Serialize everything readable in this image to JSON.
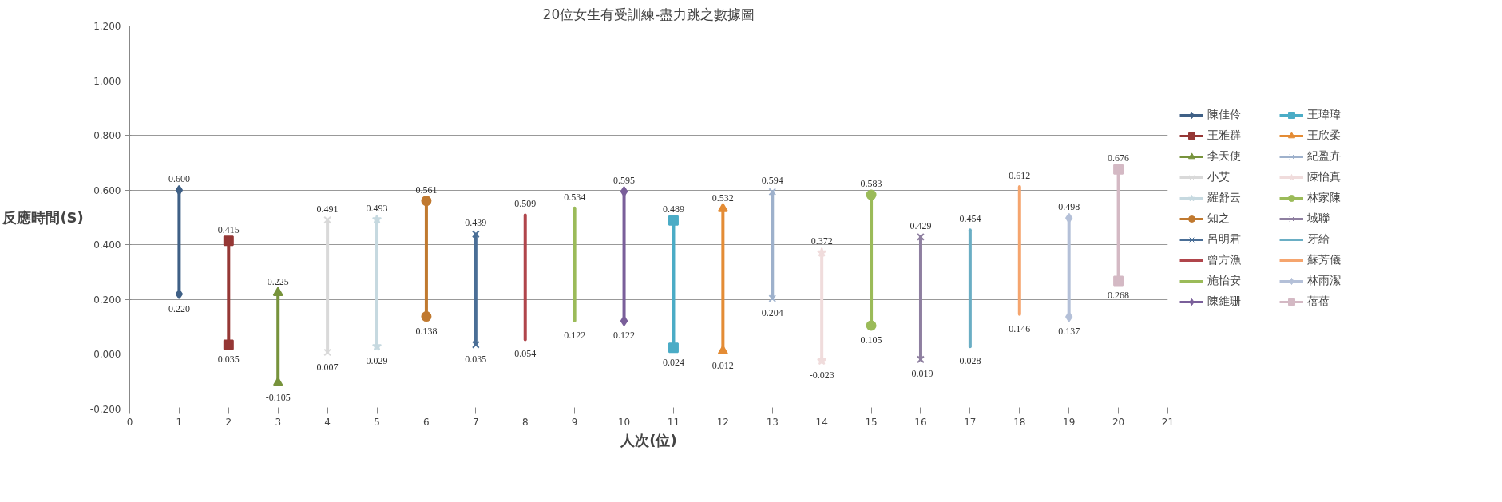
{
  "chart_data": {
    "type": "line",
    "title": "20位女生有受訓練-盡力跳之數據圖",
    "xlabel": "人次(位)",
    "ylabel": "反應時間(S)",
    "xlim": [
      0,
      21
    ],
    "xticks": [
      0,
      1,
      2,
      3,
      4,
      5,
      6,
      7,
      8,
      9,
      10,
      11,
      12,
      13,
      14,
      15,
      16,
      17,
      18,
      19,
      20,
      21
    ],
    "ylim": [
      -0.2,
      1.2
    ],
    "yticks": [
      {
        "value": -0.2,
        "label": "-0.200"
      },
      {
        "value": 0,
        "label": "0.000"
      },
      {
        "value": 0.2,
        "label": "0.200"
      },
      {
        "value": 0.4,
        "label": "0.400"
      },
      {
        "value": 0.6,
        "label": "0.600"
      },
      {
        "value": 0.8,
        "label": "0.800"
      },
      {
        "value": 1.0,
        "label": "1.000"
      },
      {
        "value": 1.2,
        "label": "1.200"
      }
    ],
    "grid": "y",
    "legend": "right",
    "series": [
      {
        "name": "陳佳伶",
        "color": "#3f6086",
        "marker": "diamond",
        "x": [
          1,
          1
        ],
        "values": [
          0.6,
          0.22
        ],
        "value_labels": [
          "0.600",
          "0.220"
        ]
      },
      {
        "name": "王雅群",
        "color": "#953735",
        "marker": "square",
        "x": [
          2,
          2
        ],
        "values": [
          0.415,
          0.035
        ],
        "value_labels": [
          "0.415",
          "0.035"
        ]
      },
      {
        "name": "李天使",
        "color": "#77933c",
        "marker": "triangle",
        "x": [
          3,
          3
        ],
        "values": [
          0.225,
          -0.105
        ],
        "value_labels": [
          "0.225",
          "-0.105"
        ]
      },
      {
        "name": "小艾",
        "color": "#d9d9d9",
        "marker": "cross",
        "x": [
          4,
          4
        ],
        "values": [
          0.491,
          0.007
        ],
        "value_labels": [
          "0.491",
          "0.007"
        ]
      },
      {
        "name": "羅舒云",
        "color": "#c6d9e0",
        "marker": "star",
        "x": [
          5,
          5
        ],
        "values": [
          0.493,
          0.029
        ],
        "value_labels": [
          "0.493",
          "0.029"
        ]
      },
      {
        "name": "知之",
        "color": "#c0792f",
        "marker": "circle",
        "x": [
          6,
          6
        ],
        "values": [
          0.561,
          0.138
        ],
        "value_labels": [
          "0.561",
          "0.138"
        ]
      },
      {
        "name": "呂明君",
        "color": "#4a6e96",
        "marker": "cross",
        "x": [
          7,
          7
        ],
        "values": [
          0.439,
          0.035
        ],
        "value_labels": [
          "0.439",
          "0.035"
        ]
      },
      {
        "name": "曾方漁",
        "color": "#b0454b",
        "marker": "none",
        "x": [
          8,
          8
        ],
        "values": [
          0.509,
          0.054
        ],
        "value_labels": [
          "0.509",
          "0.054"
        ]
      },
      {
        "name": "施怡安",
        "color": "#9bbb59",
        "marker": "none",
        "x": [
          9,
          9
        ],
        "values": [
          0.534,
          0.122
        ],
        "value_labels": [
          "0.534",
          "0.122"
        ]
      },
      {
        "name": "陳維珊",
        "color": "#7a5f9a",
        "marker": "diamond",
        "x": [
          10,
          10
        ],
        "values": [
          0.595,
          0.122
        ],
        "value_labels": [
          "0.595",
          "0.122"
        ]
      },
      {
        "name": "王瑋瑋",
        "color": "#4bacc6",
        "marker": "square",
        "x": [
          11,
          11
        ],
        "values": [
          0.489,
          0.024
        ],
        "value_labels": [
          "0.489",
          "0.024"
        ]
      },
      {
        "name": "王欣柔",
        "color": "#e48c35",
        "marker": "triangle",
        "x": [
          12,
          12
        ],
        "values": [
          0.532,
          0.012
        ],
        "value_labels": [
          "0.532",
          "0.012"
        ]
      },
      {
        "name": "紀盈卉",
        "color": "#9eb1cc",
        "marker": "cross",
        "x": [
          13,
          13
        ],
        "values": [
          0.594,
          0.204
        ],
        "value_labels": [
          "0.594",
          "0.204"
        ]
      },
      {
        "name": "陳怡真",
        "color": "#f0dcdc",
        "marker": "star",
        "x": [
          14,
          14
        ],
        "values": [
          0.372,
          -0.023
        ],
        "value_labels": [
          "0.372",
          "-0.023"
        ]
      },
      {
        "name": "林家陳",
        "color": "#9bbb59",
        "marker": "circle",
        "x": [
          15,
          15
        ],
        "values": [
          0.583,
          0.105
        ],
        "value_labels": [
          "0.583",
          "0.105"
        ]
      },
      {
        "name": "域聯",
        "color": "#8e7fa0",
        "marker": "cross",
        "x": [
          16,
          16
        ],
        "values": [
          0.429,
          -0.019
        ],
        "value_labels": [
          "0.429",
          "-0.019"
        ]
      },
      {
        "name": "牙給",
        "color": "#6aaec4",
        "marker": "none",
        "x": [
          17,
          17
        ],
        "values": [
          0.454,
          0.028
        ],
        "value_labels": [
          "0.454",
          "0.028"
        ]
      },
      {
        "name": "蘇芳儀",
        "color": "#f5a56e",
        "marker": "none",
        "x": [
          18,
          18
        ],
        "values": [
          0.612,
          0.146
        ],
        "value_labels": [
          "0.612",
          "0.146"
        ]
      },
      {
        "name": "林雨潔",
        "color": "#b4c0d8",
        "marker": "diamond",
        "x": [
          19,
          19
        ],
        "values": [
          0.498,
          0.137
        ],
        "value_labels": [
          "0.498",
          "0.137"
        ]
      },
      {
        "name": "蓓蓓",
        "color": "#d4b9c4",
        "marker": "square",
        "x": [
          20,
          20
        ],
        "values": [
          0.676,
          0.268
        ],
        "value_labels": [
          "0.676",
          "0.268"
        ]
      }
    ]
  }
}
